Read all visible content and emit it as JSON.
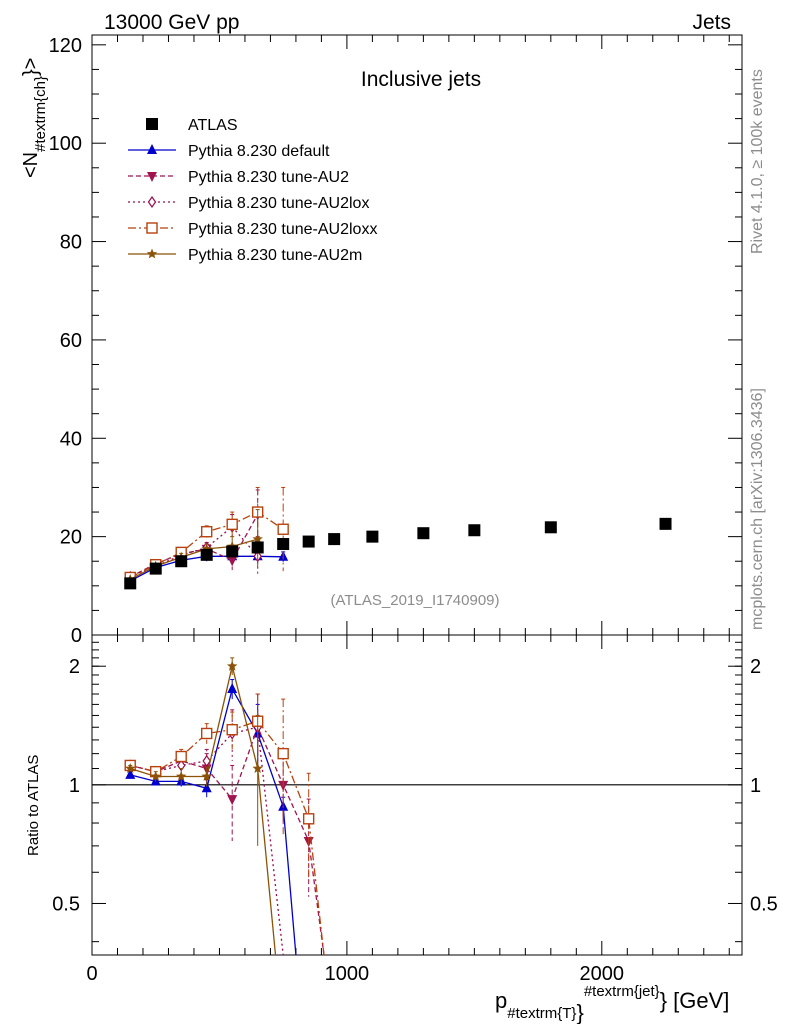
{
  "chart_data": [
    {
      "type": "scatter",
      "panel": "main",
      "title": "Inclusive jets",
      "header_left": "13000 GeV pp",
      "header_right": "Jets",
      "ylabel": "<N_{#textrm{ch}}>",
      "ylabel_main": "<N",
      "ylabel_sub": "#textrm{ch}",
      "ylabel_close": "}>",
      "xlabel": "p_{#textrm{T}}^{#textrm{jet}} [GeV]",
      "xlabel_p": "p",
      "xlabel_sub": "#textrm{T}",
      "xlabel_close": "}",
      "xlabel_sup": "#textrm{jet}",
      "xlabel_units": "} [GeV]",
      "xlim": [
        0,
        2550
      ],
      "ylim": [
        0,
        122
      ],
      "x_ticks": [
        0,
        1000,
        2000
      ],
      "x_tick_labels": [
        "0",
        "1000",
        "2000"
      ],
      "y_ticks": [
        0,
        20,
        40,
        60,
        80,
        100,
        120
      ],
      "y_tick_labels": [
        "0",
        "20",
        "40",
        "60",
        "80",
        "100",
        "120"
      ],
      "analysis_tag": "(ATLAS_2019_I1740909)",
      "side_label_top": "Rivet 4.1.0, ≥ 100k events",
      "side_label_bottom": "mcplots.cern.ch [arXiv:1306.3436]",
      "legend_position": "top-left",
      "series": [
        {
          "name": "ATLAS",
          "style": "data",
          "color": "#000000",
          "x": [
            150,
            250,
            350,
            450,
            550,
            650,
            750,
            850,
            950,
            1100,
            1300,
            1500,
            1800,
            2250
          ],
          "y": [
            10.5,
            13.5,
            15.0,
            16.3,
            17.0,
            17.8,
            18.5,
            19.0,
            19.5,
            20.0,
            20.7,
            21.3,
            21.9,
            22.6
          ],
          "err": [
            0.3,
            0.3,
            0.3,
            0.3,
            0.3,
            0.3,
            0.3,
            0.3,
            0.3,
            0.3,
            0.3,
            0.3,
            0.3,
            0.3
          ]
        },
        {
          "name": "Pythia 8.230 default",
          "style": "solid",
          "marker": "triangle-up",
          "color": "#0000cc",
          "x": [
            150,
            250,
            350,
            450,
            550,
            650,
            750
          ],
          "y": [
            11.0,
            13.7,
            15.2,
            16.0,
            16.0,
            16.0,
            15.9
          ],
          "err": [
            0.3,
            0.3,
            0.5,
            1.0,
            1.0,
            1.0,
            1.0
          ]
        },
        {
          "name": "Pythia 8.230 tune-AU2",
          "style": "dashed",
          "marker": "triangle-down",
          "color": "#a0134f",
          "x": [
            150,
            250,
            350,
            450,
            550,
            650
          ],
          "y": [
            11.8,
            14.5,
            16.5,
            17.5,
            15.2,
            24.5
          ],
          "err": [
            0.3,
            0.5,
            0.8,
            1.0,
            2.0,
            5.0
          ]
        },
        {
          "name": "Pythia 8.230 tune-AU2lox",
          "style": "dotted",
          "marker": "diamond-open",
          "color": "#990a4e",
          "x": [
            150,
            250,
            350,
            450,
            550,
            650
          ],
          "y": [
            11.8,
            14.0,
            16.2,
            17.8,
            22.0,
            16.0
          ],
          "err": [
            0.3,
            0.5,
            0.8,
            1.0,
            2.5,
            4.0
          ]
        },
        {
          "name": "Pythia 8.230 tune-AU2loxx",
          "style": "dashdot",
          "marker": "square-open",
          "color": "#b8420f",
          "x": [
            150,
            250,
            350,
            450,
            550,
            650,
            750
          ],
          "y": [
            11.7,
            14.3,
            16.8,
            21.0,
            22.5,
            25.0,
            21.5
          ],
          "err": [
            0.3,
            0.5,
            0.8,
            1.2,
            2.5,
            5.0,
            8.5
          ]
        },
        {
          "name": "Pythia 8.230 tune-AU2m",
          "style": "solid",
          "marker": "star",
          "color": "#8c5207",
          "x": [
            150,
            250,
            350,
            450,
            550,
            650
          ],
          "y": [
            11.3,
            14.0,
            15.8,
            17.5,
            18.0,
            19.5
          ],
          "err": [
            0.3,
            0.5,
            0.8,
            1.0,
            2.0,
            6.0
          ]
        }
      ]
    },
    {
      "type": "line",
      "panel": "ratio",
      "ylabel": "Ratio to ATLAS",
      "xlim": [
        0,
        2550
      ],
      "ylim": [
        0.37,
        2.4
      ],
      "y_ticks": [
        0.5,
        1,
        2
      ],
      "y_tick_labels": [
        "0.5",
        "1",
        "2"
      ],
      "reference_line": 1,
      "series": [
        {
          "name": "Pythia 8.230 default",
          "style": "solid",
          "marker": "triangle-up",
          "color": "#0000cc",
          "x": [
            150,
            250,
            350,
            450,
            550,
            650,
            750,
            800
          ],
          "y": [
            1.06,
            1.02,
            1.02,
            0.98,
            1.75,
            1.35,
            0.88,
            0.37
          ],
          "err": [
            0.02,
            0.02,
            0.03,
            0.05,
            0.1,
            0.25,
            0.05,
            0
          ]
        },
        {
          "name": "Pythia 8.230 tune-AU2",
          "style": "dashed",
          "marker": "triangle-down",
          "color": "#a0134f",
          "x": [
            150,
            250,
            350,
            450,
            550,
            650,
            750,
            850,
            910
          ],
          "y": [
            1.12,
            1.08,
            1.15,
            1.1,
            0.92,
            1.4,
            1.0,
            0.72,
            0.37
          ],
          "err": [
            0.02,
            0.03,
            0.05,
            0.1,
            0.2,
            0.3,
            0.2,
            0.2,
            0
          ]
        },
        {
          "name": "Pythia 8.230 tune-AU2lox",
          "style": "dotted",
          "marker": "diamond-open",
          "color": "#990a4e",
          "x": [
            150,
            250,
            350,
            450,
            550,
            650,
            750
          ],
          "y": [
            1.12,
            1.08,
            1.12,
            1.15,
            1.35,
            1.4,
            0.37
          ],
          "err": [
            0.02,
            0.03,
            0.05,
            0.08,
            0.2,
            0.3,
            0
          ]
        },
        {
          "name": "Pythia 8.230 tune-AU2loxx",
          "style": "dashdot",
          "marker": "square-open",
          "color": "#b8420f",
          "x": [
            150,
            250,
            350,
            450,
            550,
            650,
            750,
            850,
            910
          ],
          "y": [
            1.12,
            1.08,
            1.18,
            1.35,
            1.38,
            1.45,
            1.2,
            0.82,
            0.37
          ],
          "err": [
            0.02,
            0.03,
            0.05,
            0.08,
            0.15,
            0.25,
            0.45,
            0.25,
            0
          ]
        },
        {
          "name": "Pythia 8.230 tune-AU2m",
          "style": "solid",
          "marker": "star",
          "color": "#8c5207",
          "x": [
            150,
            250,
            350,
            450,
            550,
            650,
            720
          ],
          "y": [
            1.1,
            1.05,
            1.05,
            1.05,
            2.0,
            1.1,
            0.37
          ],
          "err": [
            0.02,
            0.03,
            0.05,
            0.06,
            0.1,
            0.4,
            0
          ]
        }
      ]
    }
  ]
}
